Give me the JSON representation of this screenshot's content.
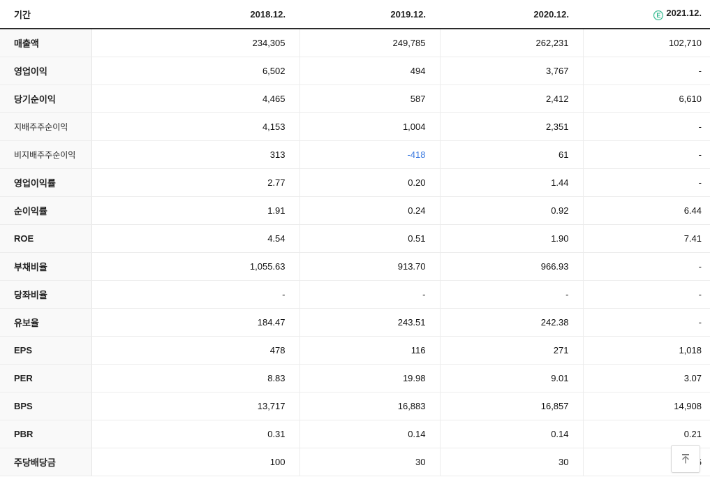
{
  "header": {
    "period_label": "기간",
    "columns": [
      "2018.12.",
      "2019.12.",
      "2020.12.",
      "2021.12."
    ],
    "estimate_badge": "E",
    "estimate_column_index": 3
  },
  "colors": {
    "estimate_green": "#29b68b",
    "negative_blue": "#3d7be0",
    "header_border": "#2b2b2b",
    "label_column_bg": "#f9f9f9"
  },
  "rows": [
    {
      "label": "매출액",
      "sub": false,
      "group_start": false,
      "values": [
        "234,305",
        "249,785",
        "262,231",
        "102,710"
      ]
    },
    {
      "label": "영업이익",
      "sub": false,
      "group_start": false,
      "values": [
        "6,502",
        "494",
        "3,767",
        "-"
      ]
    },
    {
      "label": "당기순이익",
      "sub": false,
      "group_start": false,
      "values": [
        "4,465",
        "587",
        "2,412",
        "6,610"
      ]
    },
    {
      "label": "지배주주순이익",
      "sub": true,
      "group_start": false,
      "values": [
        "4,153",
        "1,004",
        "2,351",
        "-"
      ]
    },
    {
      "label": "비지배주주순이익",
      "sub": true,
      "group_start": false,
      "values": [
        "313",
        "-418",
        "61",
        "-"
      ],
      "blue_value_index": 1
    },
    {
      "label": "영업이익률",
      "sub": false,
      "group_start": true,
      "values": [
        "2.77",
        "0.20",
        "1.44",
        "-"
      ]
    },
    {
      "label": "순이익률",
      "sub": false,
      "group_start": false,
      "values": [
        "1.91",
        "0.24",
        "0.92",
        "6.44"
      ]
    },
    {
      "label": "ROE",
      "sub": false,
      "group_start": false,
      "values": [
        "4.54",
        "0.51",
        "1.90",
        "7.41"
      ]
    },
    {
      "label": "부채비율",
      "sub": false,
      "group_start": true,
      "values": [
        "1,055.63",
        "913.70",
        "966.93",
        "-"
      ]
    },
    {
      "label": "당좌비율",
      "sub": false,
      "group_start": false,
      "values": [
        "-",
        "-",
        "-",
        "-"
      ]
    },
    {
      "label": "유보율",
      "sub": false,
      "group_start": false,
      "values": [
        "184.47",
        "243.51",
        "242.38",
        "-"
      ]
    },
    {
      "label": "EPS",
      "sub": false,
      "group_start": true,
      "values": [
        "478",
        "116",
        "271",
        "1,018"
      ]
    },
    {
      "label": "PER",
      "sub": false,
      "group_start": false,
      "values": [
        "8.83",
        "19.98",
        "9.01",
        "3.07"
      ]
    },
    {
      "label": "BPS",
      "sub": false,
      "group_start": false,
      "values": [
        "13,717",
        "16,883",
        "16,857",
        "14,908"
      ]
    },
    {
      "label": "PBR",
      "sub": false,
      "group_start": false,
      "values": [
        "0.31",
        "0.14",
        "0.14",
        "0.21"
      ]
    },
    {
      "label": "주당배당금",
      "sub": false,
      "group_start": true,
      "values": [
        "100",
        "30",
        "30",
        "6"
      ]
    }
  ],
  "scroll_top_button": {
    "icon": "arrow-up-to-bar-icon",
    "action": "scroll to top"
  }
}
